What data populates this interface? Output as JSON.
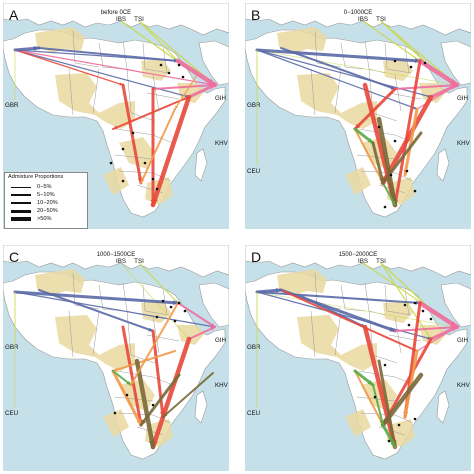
{
  "colors": {
    "sea": "#c5e0e8",
    "land": "#ffffff",
    "region": "#ead8a0",
    "border": "#9a9a9a",
    "to_igh": "#f06e9e",
    "to_eu": "#c9d94a",
    "west": "#5a6aa8",
    "red": "#e8483a",
    "orange": "#f29a4a",
    "olive": "#7a6a3a",
    "green": "#5aaa45"
  },
  "panels": [
    {
      "letter": "A",
      "period": "before 0CE",
      "pops": [
        "IBS",
        "TSI",
        "GBR",
        "GIH",
        "KHV"
      ]
    },
    {
      "letter": "B",
      "period": "0−1000CE",
      "pops": [
        "IBS",
        "TSI",
        "GBR",
        "GIH",
        "KHV",
        "CEU"
      ]
    },
    {
      "letter": "C",
      "period": "1000−1500CE",
      "pops": [
        "IBS",
        "TSI",
        "GBR",
        "GIH",
        "KHV",
        "CEU"
      ]
    },
    {
      "letter": "D",
      "period": "1500−2000CE",
      "pops": [
        "IBS",
        "TSI",
        "GBR",
        "GIH",
        "KHV",
        "CEU"
      ]
    }
  ],
  "legend": {
    "title": "Admixture Proportions",
    "items": [
      "0−5%",
      "5−10%",
      "10−20%",
      "20−50%",
      ">50%"
    ]
  }
}
